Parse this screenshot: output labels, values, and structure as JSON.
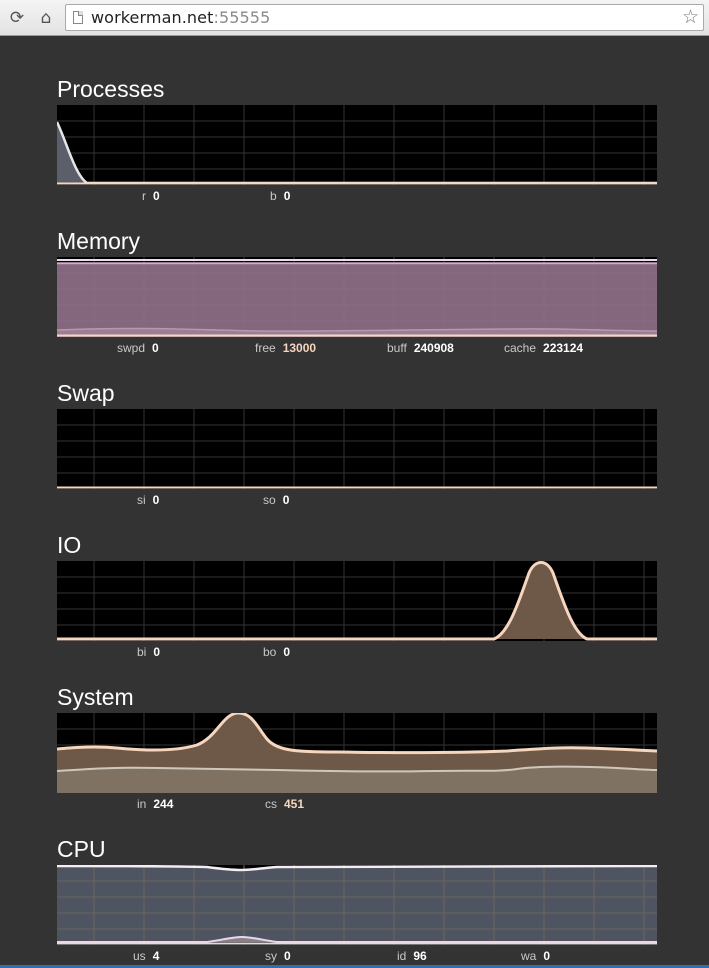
{
  "browser": {
    "url_host": "workerman.net",
    "url_port": ":55555"
  },
  "sections": [
    {
      "title": "Processes",
      "legend": [
        {
          "label": "r",
          "value": "0"
        },
        {
          "label": "b",
          "value": "0"
        }
      ]
    },
    {
      "title": "Memory",
      "legend": [
        {
          "label": "swpd",
          "value": "0"
        },
        {
          "label": "free",
          "value": "13000"
        },
        {
          "label": "buff",
          "value": "240908"
        },
        {
          "label": "cache",
          "value": "223124"
        }
      ]
    },
    {
      "title": "Swap",
      "legend": [
        {
          "label": "si",
          "value": "0"
        },
        {
          "label": "so",
          "value": "0"
        }
      ]
    },
    {
      "title": "IO",
      "legend": [
        {
          "label": "bi",
          "value": "0"
        },
        {
          "label": "bo",
          "value": "0"
        }
      ]
    },
    {
      "title": "System",
      "legend": [
        {
          "label": "in",
          "value": "244"
        },
        {
          "label": "cs",
          "value": "451"
        }
      ]
    },
    {
      "title": "CPU",
      "legend": [
        {
          "label": "us",
          "value": "4"
        },
        {
          "label": "sy",
          "value": "0"
        },
        {
          "label": "id",
          "value": "96"
        },
        {
          "label": "wa",
          "value": "0"
        }
      ]
    }
  ],
  "colors": {
    "page_bg": "#333333",
    "chart_bg": "#000000",
    "grid": "#333333",
    "peach": "#f6d6bf",
    "lavender": "#e8d8ef",
    "memory_fill": "#8f6f88",
    "brown_fill": "#6e5848",
    "cpu_fill": "#4e5460"
  }
}
